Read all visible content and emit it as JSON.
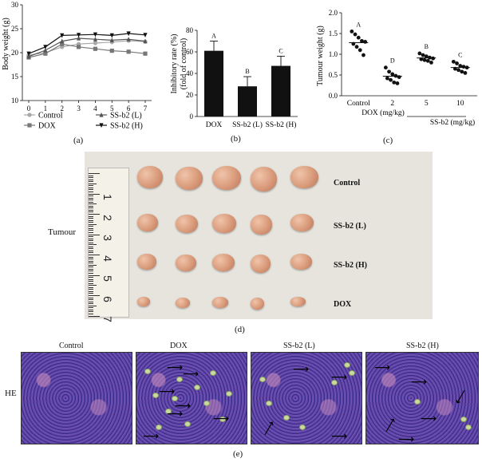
{
  "panel_labels": {
    "a": "(a)",
    "b": "(b)",
    "c": "(c)",
    "d": "(d)",
    "e": "(e)"
  },
  "chart_data": [
    {
      "type": "line",
      "ylabel": "Body weight (g)",
      "x": [
        0,
        1,
        2,
        3,
        4,
        5,
        6,
        7
      ],
      "ylim": [
        10,
        30
      ],
      "yticks": [
        10,
        15,
        20,
        25,
        30
      ],
      "series": [
        {
          "name": "Control",
          "color": "#a8a8a8",
          "marker": "circle",
          "values": [
            19.5,
            20.0,
            21.2,
            21.8,
            22.0,
            22.2,
            22.5,
            22.3
          ]
        },
        {
          "name": "DOX",
          "color": "#777777",
          "marker": "square",
          "values": [
            19.0,
            19.8,
            21.8,
            21.2,
            20.8,
            20.4,
            20.2,
            19.8
          ]
        },
        {
          "name": "SS-b2 (L)",
          "color": "#555555",
          "marker": "triangle-up",
          "values": [
            19.2,
            20.5,
            22.4,
            23.0,
            22.8,
            22.6,
            22.8,
            22.4
          ]
        },
        {
          "name": "SS-b2 (H)",
          "color": "#111111",
          "marker": "triangle-down",
          "values": [
            19.8,
            21.2,
            23.6,
            23.7,
            23.8,
            23.6,
            24.0,
            23.7
          ]
        }
      ],
      "legend": [
        "Control",
        "SS-b2 (L)",
        "DOX",
        "SS-b2 (H)"
      ]
    },
    {
      "type": "bar",
      "ylabel": "Inhibitory rate (%)",
      "ylabel2": "(fold of control)",
      "categories": [
        "DOX",
        "SS-b2 (L)",
        "SS-b2 (H)"
      ],
      "values": [
        61,
        28,
        47
      ],
      "errors": [
        9,
        9,
        9
      ],
      "letters": [
        "A",
        "B",
        "C"
      ],
      "ylim": [
        0,
        80
      ],
      "yticks": [
        0,
        20,
        40,
        60,
        80
      ]
    },
    {
      "type": "scatter",
      "ylabel": "Tumour weight (g)",
      "categories": [
        "Control",
        "2",
        "5",
        "10"
      ],
      "letters": [
        "A",
        "D",
        "B",
        "C"
      ],
      "points": [
        [
          1.55,
          1.48,
          1.4,
          1.32,
          1.3,
          1.25,
          1.18,
          1.1,
          0.98
        ],
        [
          0.68,
          0.58,
          0.52,
          0.48,
          0.45,
          0.42,
          0.38,
          0.32,
          0.3
        ],
        [
          1.02,
          0.98,
          0.95,
          0.92,
          0.9,
          0.88,
          0.86,
          0.84,
          0.8
        ],
        [
          0.82,
          0.78,
          0.72,
          0.7,
          0.68,
          0.65,
          0.62,
          0.58,
          0.55
        ]
      ],
      "means": [
        1.28,
        0.47,
        0.91,
        0.68
      ],
      "ylim": [
        0.0,
        2.0
      ],
      "yticks": [
        "0.0",
        "0.5",
        "1.0",
        "1.5",
        "2.0"
      ],
      "dox_label": "DOX (mg/kg)",
      "ssb2_label": "SS-b2 (mg/kg)"
    }
  ],
  "photo": {
    "row_title": "Tumour",
    "ruler_numbers": [
      "1",
      "2",
      "3",
      "4",
      "5",
      "6",
      "7"
    ],
    "rows": [
      "Control",
      "SS-b2 (L)",
      "SS-b2 (H)",
      "DOX"
    ]
  },
  "histology": {
    "row_label": "HE",
    "panels": [
      "Control",
      "DOX",
      "SS-b2 (L)",
      "SS-b2 (H)"
    ]
  }
}
